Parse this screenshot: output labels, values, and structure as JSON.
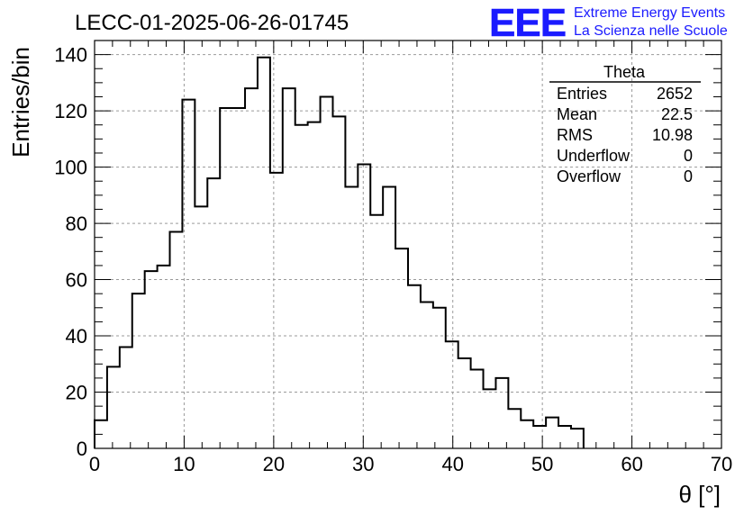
{
  "header": {
    "run_id": "LECC-01-2025-06-26-01745",
    "logo_text": "EEE",
    "logo_line1": "Extreme Energy Events",
    "logo_line2": "La Scienza nelle Scuole",
    "brand_color": "#1a1aff"
  },
  "stats_box": {
    "title": "Theta",
    "rows": [
      {
        "label": "Entries",
        "value": "2652"
      },
      {
        "label": "Mean",
        "value": "22.5"
      },
      {
        "label": "RMS",
        "value": "10.98"
      },
      {
        "label": "Underflow",
        "value": "0"
      },
      {
        "label": "Overflow",
        "value": "0"
      }
    ]
  },
  "chart_data": {
    "type": "histogram",
    "title": "LECC-01-2025-06-26-01745",
    "xlabel": "θ [°]",
    "ylabel": "Entries/bin",
    "xlim": [
      0,
      70
    ],
    "ylim": [
      0,
      145
    ],
    "grid": true,
    "bin_width": 1.4,
    "x_start": 0,
    "x_ticks": [
      0,
      10,
      20,
      30,
      40,
      50,
      60,
      70
    ],
    "y_ticks": [
      0,
      20,
      40,
      60,
      80,
      100,
      120,
      140
    ],
    "values": [
      10,
      29,
      36,
      55,
      63,
      65,
      77,
      124,
      86,
      96,
      121,
      121,
      128,
      139,
      98,
      128,
      115,
      116,
      125,
      118,
      93,
      101,
      83,
      93,
      71,
      58,
      52,
      50,
      38,
      32,
      28,
      21,
      25,
      14,
      10,
      8,
      11,
      8,
      7,
      0,
      0,
      0,
      0,
      0,
      0,
      0,
      0,
      0,
      0,
      0
    ],
    "line_color": "#000000"
  }
}
